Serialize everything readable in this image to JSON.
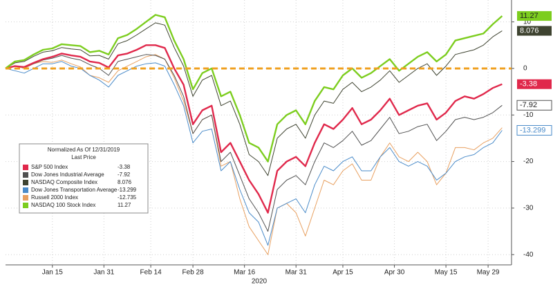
{
  "chart_data": {
    "type": "line",
    "x_label": "2020",
    "legend_title": "Normalized As Of 12/31/2019",
    "legend_subtitle": "Last Price",
    "legend_position": "lower-left",
    "grid": true,
    "reference_line": {
      "value": 0,
      "color": "#f0a020"
    },
    "xlim": [
      0,
      108
    ],
    "xticks": [
      {
        "value": 10,
        "label": "Jan 15"
      },
      {
        "value": 21,
        "label": "Jan 31"
      },
      {
        "value": 31,
        "label": "Feb 14"
      },
      {
        "value": 40,
        "label": "Feb 28"
      },
      {
        "value": 51,
        "label": "Mar 16"
      },
      {
        "value": 62,
        "label": "Mar 31"
      },
      {
        "value": 72,
        "label": "Apr 15"
      },
      {
        "value": 83,
        "label": "Apr 30"
      },
      {
        "value": 94,
        "label": "May 15"
      },
      {
        "value": 103,
        "label": "May 29"
      }
    ],
    "ylim": [
      -42.2,
      14.7
    ],
    "yticks": [
      10,
      0,
      -10,
      -20,
      -30,
      -40
    ],
    "x": [
      0,
      2,
      4,
      6,
      8,
      10,
      12,
      14,
      16,
      18,
      20,
      22,
      24,
      26,
      28,
      30,
      32,
      34,
      36,
      38,
      40,
      42,
      44,
      46,
      48,
      50,
      52,
      54,
      56,
      58,
      60,
      62,
      64,
      66,
      68,
      70,
      72,
      74,
      76,
      78,
      80,
      82,
      84,
      86,
      88,
      90,
      92,
      94,
      96,
      98,
      100,
      102,
      104,
      106
    ],
    "series": [
      {
        "name": "S&P 500 Index",
        "color": "#e0284b",
        "line_width": 2.4,
        "end_label": true,
        "values": [
          0,
          0.5,
          0.3,
          1.2,
          2,
          2.5,
          3.2,
          2.8,
          2.5,
          1.5,
          1.2,
          0.2,
          2.8,
          3.2,
          4,
          5,
          5,
          4.4,
          0,
          -3.5,
          -12,
          -9,
          -8,
          -18,
          -16,
          -20,
          -24,
          -27,
          -31,
          -22,
          -20,
          -19,
          -21,
          -16,
          -12,
          -13,
          -11,
          -8.5,
          -12,
          -11,
          -9,
          -6.5,
          -10,
          -9,
          -8,
          -7.5,
          -11,
          -9.5,
          -7,
          -6,
          -6.5,
          -5.5,
          -4.2,
          -3.38
        ]
      },
      {
        "name": "Dow Jones Industrial Average",
        "color": "#505050",
        "line_width": 1,
        "end_label": true,
        "values": [
          0,
          0.5,
          0.2,
          1,
          1.8,
          2.2,
          2.8,
          2.2,
          1.8,
          0.8,
          0,
          -1.5,
          1.5,
          2,
          2.5,
          3,
          2.8,
          2,
          -1.5,
          -6,
          -14,
          -11,
          -10,
          -20,
          -18,
          -23,
          -28,
          -31,
          -35,
          -26,
          -24,
          -23,
          -25,
          -20,
          -16,
          -17,
          -15.5,
          -13.5,
          -16.5,
          -15.5,
          -13,
          -10.5,
          -14,
          -13.5,
          -12.5,
          -12,
          -15.5,
          -13.5,
          -11,
          -10.5,
          -11,
          -10.5,
          -9.5,
          -7.92
        ]
      },
      {
        "name": "NASDAQ Composite Index",
        "color": "#3e4330",
        "line_width": 1,
        "end_label": true,
        "values": [
          0,
          1.2,
          1.5,
          2.6,
          3.5,
          3.8,
          4.5,
          4.2,
          4,
          2.7,
          2.8,
          2,
          5.3,
          6,
          7.2,
          8.5,
          9.8,
          9.3,
          4.5,
          0.5,
          -6,
          -2.5,
          -1.5,
          -8,
          -7,
          -12,
          -18.5,
          -20,
          -23,
          -15,
          -13,
          -12,
          -15,
          -10,
          -7,
          -7.5,
          -4.5,
          -3,
          -5,
          -4,
          -2.5,
          -0.5,
          -3,
          -1.5,
          0,
          1,
          -1.5,
          0.5,
          3,
          3.5,
          4,
          5,
          6.8,
          8.076
        ]
      },
      {
        "name": "Dow Jones Transportation Average",
        "color": "#4a8bc9",
        "line_width": 1,
        "end_label": true,
        "values": [
          0,
          -0.5,
          -1,
          0,
          1,
          1,
          1.5,
          0.5,
          0,
          -1.5,
          -2.5,
          -4,
          -1.5,
          -0.5,
          0.5,
          1,
          1.2,
          0.5,
          -3.5,
          -8,
          -16,
          -13.5,
          -13,
          -22,
          -20,
          -26,
          -31,
          -33,
          -38,
          -30,
          -29,
          -28,
          -31,
          -25,
          -21,
          -22,
          -20,
          -19,
          -22,
          -22,
          -19,
          -17,
          -20,
          -21,
          -20,
          -21,
          -24,
          -22.5,
          -20,
          -19,
          -18.5,
          -17,
          -16,
          -13.299
        ]
      },
      {
        "name": "Russell 2000 Index",
        "color": "#e8a060",
        "line_width": 1,
        "end_label": false,
        "values": [
          0,
          0.5,
          0,
          1,
          1.5,
          1.3,
          1.8,
          1,
          0.3,
          -1.5,
          -2,
          -3,
          -0.5,
          0.5,
          1.5,
          2.5,
          3,
          2,
          -2,
          -7,
          -14,
          -11,
          -10,
          -21,
          -20,
          -28,
          -34,
          -37,
          -40,
          -30,
          -29,
          -31,
          -36,
          -30,
          -24,
          -25,
          -22,
          -20.5,
          -24,
          -24,
          -19,
          -16,
          -19,
          -20,
          -18,
          -20,
          -25,
          -22.5,
          -17,
          -17,
          -17.5,
          -16,
          -15,
          -12.735
        ]
      },
      {
        "name": "NASDAQ 100 Stock Index",
        "color": "#7ccd1e",
        "line_width": 2.4,
        "end_label": true,
        "values": [
          0,
          1.5,
          1.8,
          3,
          4,
          4.3,
          5.2,
          5,
          4.8,
          3.5,
          3.8,
          3,
          6.5,
          7.2,
          8.5,
          10,
          11.5,
          11,
          6,
          2,
          -4.5,
          -1,
          0,
          -6,
          -5,
          -10,
          -16,
          -17,
          -20,
          -12,
          -10,
          -9,
          -12,
          -7,
          -4,
          -4.5,
          -1.5,
          0,
          -2,
          -1,
          0.5,
          2,
          -0.5,
          1,
          2.5,
          3.5,
          1.5,
          3,
          6,
          6.5,
          7,
          7.5,
          9.5,
          11.27
        ]
      }
    ]
  }
}
